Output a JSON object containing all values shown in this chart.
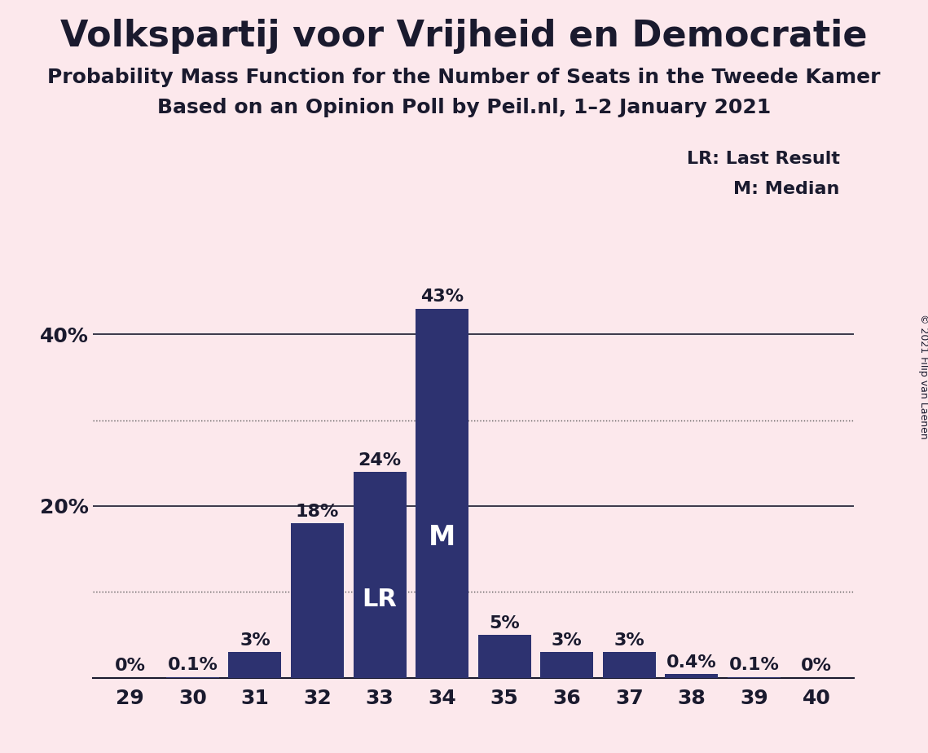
{
  "title": "Volkspartij voor Vrijheid en Democratie",
  "subtitle1": "Probability Mass Function for the Number of Seats in the Tweede Kamer",
  "subtitle2": "Based on an Opinion Poll by Peil.nl, 1–2 January 2021",
  "copyright": "© 2021 Filip van Laenen",
  "categories": [
    29,
    30,
    31,
    32,
    33,
    34,
    35,
    36,
    37,
    38,
    39,
    40
  ],
  "values": [
    0.0,
    0.1,
    3.0,
    18.0,
    24.0,
    43.0,
    5.0,
    3.0,
    3.0,
    0.4,
    0.1,
    0.0
  ],
  "bar_labels": [
    "0%",
    "0.1%",
    "3%",
    "18%",
    "24%",
    "43%",
    "5%",
    "3%",
    "3%",
    "0.4%",
    "0.1%",
    "0%"
  ],
  "bar_color": "#2d3270",
  "background_color": "#fce8ec",
  "ymajor_ticks": [
    20,
    40
  ],
  "yminor_ticks": [
    10,
    30
  ],
  "ylim": [
    0,
    50
  ],
  "legend_text1": "LR: Last Result",
  "legend_text2": "M: Median",
  "lr_seat": 33,
  "median_seat": 34,
  "title_fontsize": 32,
  "subtitle_fontsize": 18,
  "tick_fontsize": 18,
  "bar_label_fontsize": 16,
  "bar_label_outside_color": "#1a1a2e",
  "bar_label_inside_color": "#ffffff",
  "lr_label_fontsize": 22,
  "m_label_fontsize": 24,
  "legend_fontsize": 16,
  "copyright_fontsize": 9,
  "text_color": "#1a1a2e"
}
